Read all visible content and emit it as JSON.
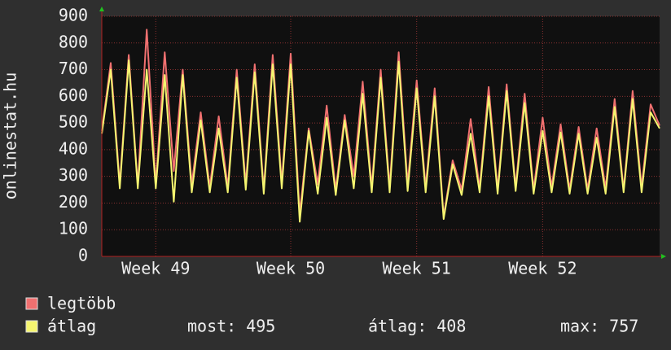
{
  "chart_data": {
    "type": "line",
    "y_label": "onlinestat.hu",
    "categories": [
      null,
      null,
      null,
      null,
      null,
      null,
      "Week 49",
      null,
      null,
      null,
      null,
      null,
      null,
      null,
      null,
      null,
      null,
      null,
      null,
      null,
      null,
      "Week 50",
      null,
      null,
      null,
      null,
      null,
      null,
      null,
      null,
      null,
      null,
      null,
      null,
      null,
      "Week 51",
      null,
      null,
      null,
      null,
      null,
      null,
      null,
      null,
      null,
      null,
      null,
      null,
      null,
      "Week 52",
      null,
      null,
      null,
      null,
      null,
      null,
      null,
      null,
      null,
      null,
      null,
      null,
      null
    ],
    "series": [
      {
        "name": "legtöbb",
        "color": "#f07070",
        "values": [
          470,
          725,
          270,
          755,
          265,
          850,
          270,
          765,
          320,
          700,
          270,
          540,
          260,
          525,
          260,
          700,
          270,
          720,
          250,
          755,
          275,
          760,
          160,
          480,
          270,
          565,
          250,
          530,
          300,
          655,
          260,
          700,
          260,
          765,
          270,
          660,
          260,
          630,
          150,
          360,
          250,
          515,
          255,
          635,
          250,
          645,
          260,
          610,
          250,
          520,
          260,
          495,
          250,
          485,
          250,
          480,
          255,
          590,
          250,
          620,
          260,
          570,
          490
        ]
      },
      {
        "name": "átlag",
        "color": "#f5f570",
        "values": [
          460,
          700,
          255,
          735,
          255,
          700,
          255,
          680,
          205,
          680,
          240,
          510,
          240,
          480,
          240,
          670,
          250,
          690,
          235,
          720,
          255,
          720,
          130,
          470,
          235,
          520,
          230,
          510,
          255,
          610,
          240,
          670,
          240,
          730,
          245,
          630,
          240,
          600,
          140,
          345,
          230,
          460,
          240,
          600,
          235,
          620,
          245,
          575,
          235,
          470,
          240,
          465,
          235,
          460,
          235,
          445,
          235,
          560,
          240,
          590,
          240,
          540,
          480
        ]
      }
    ],
    "ylim": [
      0,
      900
    ],
    "yticks": [
      0,
      100,
      200,
      300,
      400,
      500,
      600,
      700,
      800,
      900
    ],
    "grid": true,
    "stats": [
      {
        "label": "most:",
        "value": 495
      },
      {
        "label": "átlag:",
        "value": 408
      },
      {
        "label": "max:",
        "value": 757
      }
    ]
  }
}
